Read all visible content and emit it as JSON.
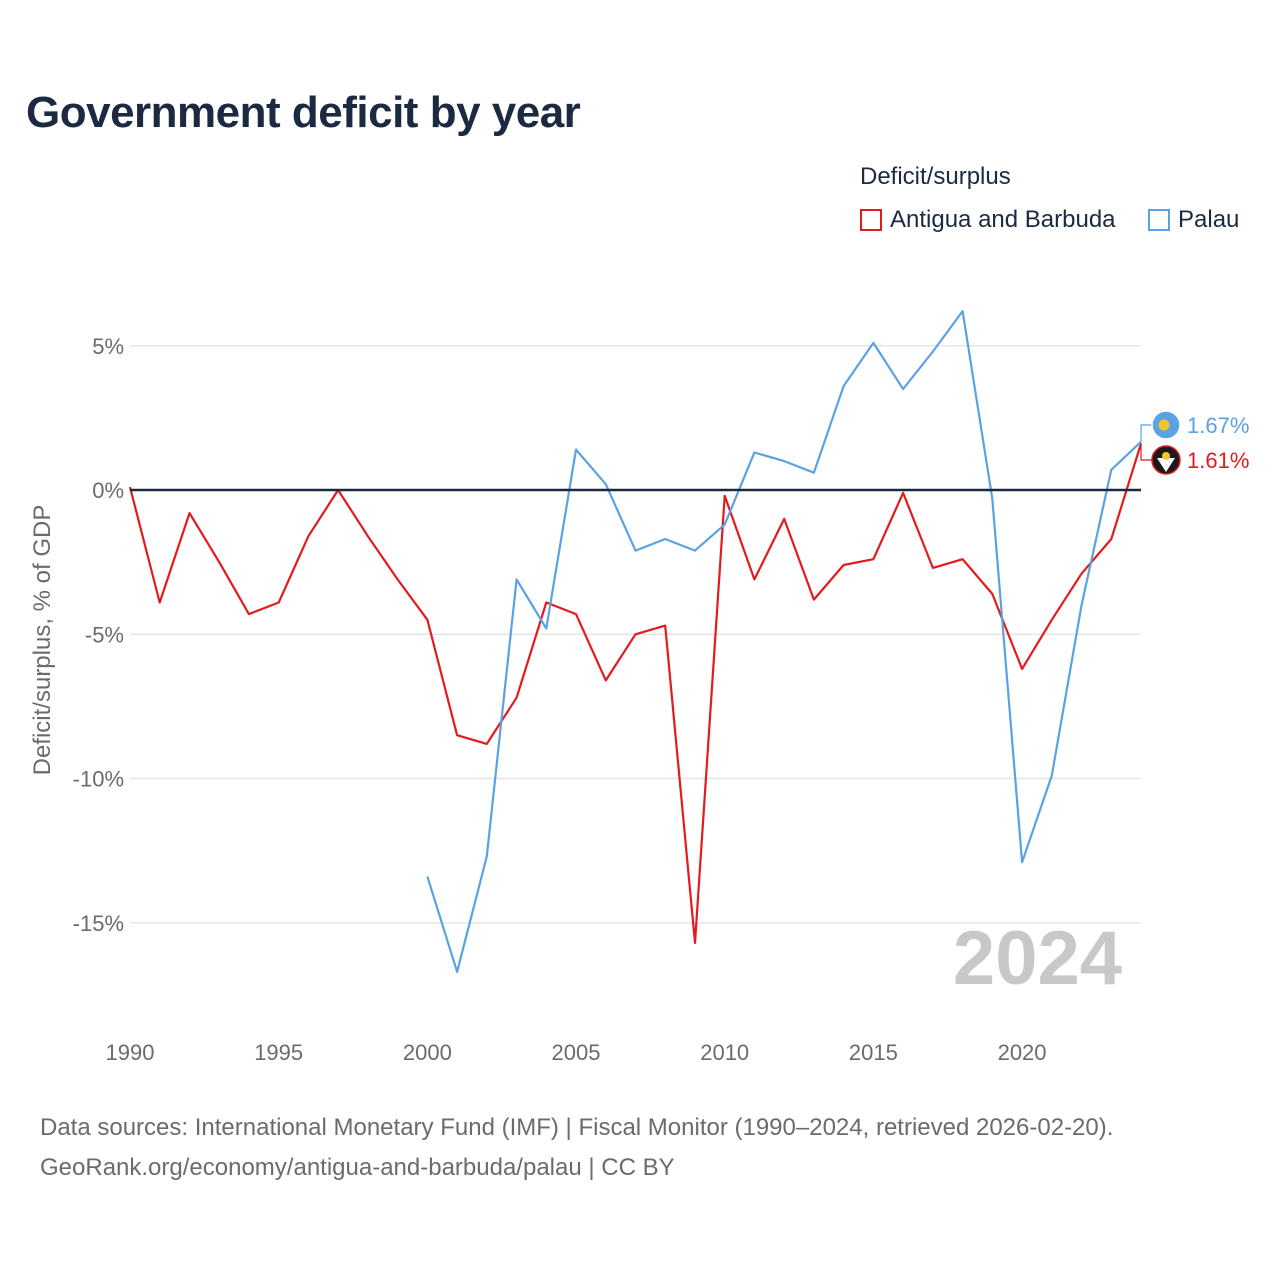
{
  "chart_data": {
    "type": "line",
    "title": "Government deficit by year",
    "ylabel": "Deficit/surplus, % of GDP",
    "xlabel": "",
    "xlim": [
      1990,
      2024
    ],
    "ylim": [
      -18,
      7
    ],
    "x_ticks": [
      1990,
      1995,
      2000,
      2005,
      2010,
      2015,
      2020
    ],
    "x_tick_labels": [
      "1990",
      "1995",
      "2000",
      "2005",
      "2010",
      "2015",
      "2020"
    ],
    "y_ticks": [
      5,
      0,
      -5,
      -10,
      -15
    ],
    "y_tick_labels": [
      "5%",
      "0%",
      "-5%",
      "-10%",
      "-15%"
    ],
    "legend_title": "Deficit/surplus",
    "legend_position": "top-right",
    "watermark_year": "2024",
    "series": [
      {
        "name": "Antigua and Barbuda",
        "color": "#e41a1c",
        "end_label": "1.61%",
        "x": [
          1990,
          1991,
          1992,
          1993,
          1994,
          1995,
          1996,
          1997,
          1998,
          1999,
          2000,
          2001,
          2002,
          2003,
          2004,
          2005,
          2006,
          2007,
          2008,
          2009,
          2010,
          2011,
          2012,
          2013,
          2014,
          2015,
          2016,
          2017,
          2018,
          2019,
          2020,
          2021,
          2022,
          2023,
          2024
        ],
        "values": [
          0.1,
          -3.9,
          -0.8,
          -2.5,
          -4.3,
          -3.9,
          -1.6,
          0.0,
          -1.6,
          -3.1,
          -4.5,
          -8.5,
          -8.8,
          -7.2,
          -3.9,
          -4.3,
          -6.6,
          -5.0,
          -4.7,
          -15.7,
          -0.2,
          -3.1,
          -1.0,
          -3.8,
          -2.6,
          -2.4,
          -0.1,
          -2.7,
          -2.4,
          -3.6,
          -6.2,
          -4.5,
          -2.9,
          -1.7,
          1.61
        ]
      },
      {
        "name": "Palau",
        "color": "#5aa2e3",
        "end_label": "1.67%",
        "x": [
          2000,
          2001,
          2002,
          2003,
          2004,
          2005,
          2006,
          2007,
          2008,
          2009,
          2010,
          2011,
          2012,
          2013,
          2014,
          2015,
          2016,
          2017,
          2018,
          2019,
          2020,
          2021,
          2022,
          2023,
          2024
        ],
        "values": [
          -13.4,
          -16.7,
          -12.7,
          -3.1,
          -4.8,
          1.4,
          0.2,
          -2.1,
          -1.7,
          -2.1,
          -1.2,
          1.3,
          1.0,
          0.6,
          3.6,
          5.1,
          3.5,
          4.8,
          6.2,
          -0.3,
          -12.9,
          -9.9,
          -4.0,
          0.7,
          1.67
        ]
      }
    ]
  },
  "source_line1": "Data sources: International Monetary Fund (IMF) | Fiscal Monitor (1990–2024, retrieved 2026-02-20).",
  "source_line2": "GeoRank.org/economy/antigua-and-barbuda/palau | CC BY"
}
